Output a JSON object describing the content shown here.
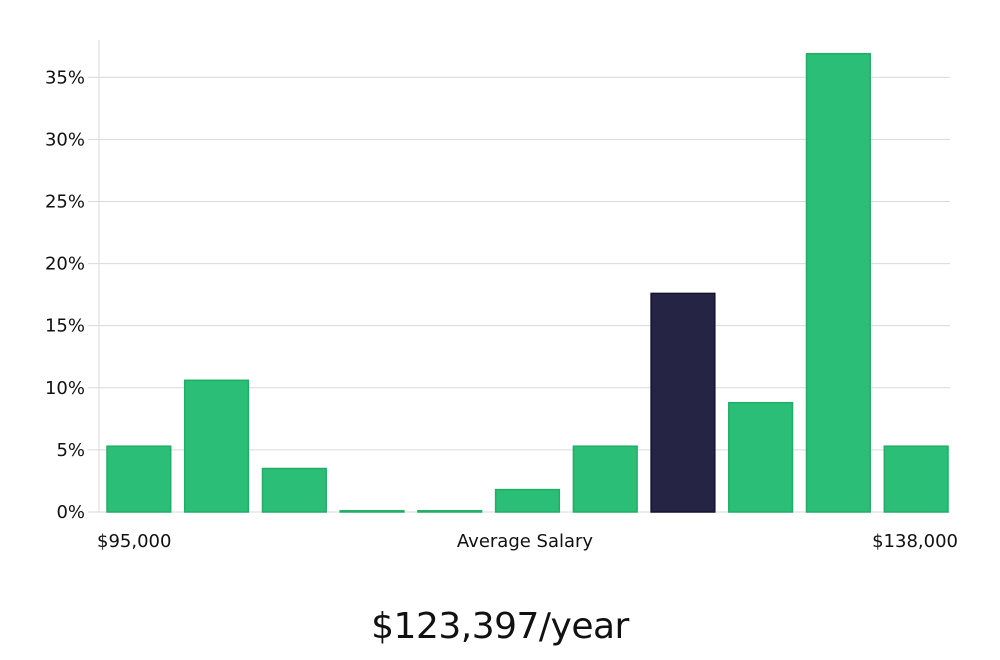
{
  "chart_data": {
    "type": "bar",
    "categories": [
      "1",
      "2",
      "3",
      "4",
      "5",
      "6",
      "7",
      "8",
      "9",
      "10",
      "11"
    ],
    "values": [
      5.3,
      10.6,
      3.5,
      0.1,
      0.1,
      1.8,
      5.3,
      17.6,
      8.8,
      36.9,
      5.3
    ],
    "highlight_index": 7,
    "ylim": [
      0,
      38
    ],
    "y_ticks": [
      0,
      5,
      10,
      15,
      20,
      25,
      30,
      35
    ],
    "y_tick_labels": [
      "0%",
      "5%",
      "10%",
      "15%",
      "20%",
      "25%",
      "30%",
      "35%"
    ],
    "x_labels": {
      "left": "$95,000",
      "center": "Average Salary",
      "right": "$138,000"
    },
    "grid": true,
    "colors": {
      "bar": "#2abe76",
      "bar_stroke": "#1fae66",
      "highlight": "#262445",
      "grid": "#d9d9d9"
    }
  },
  "caption": "$123,397/year"
}
